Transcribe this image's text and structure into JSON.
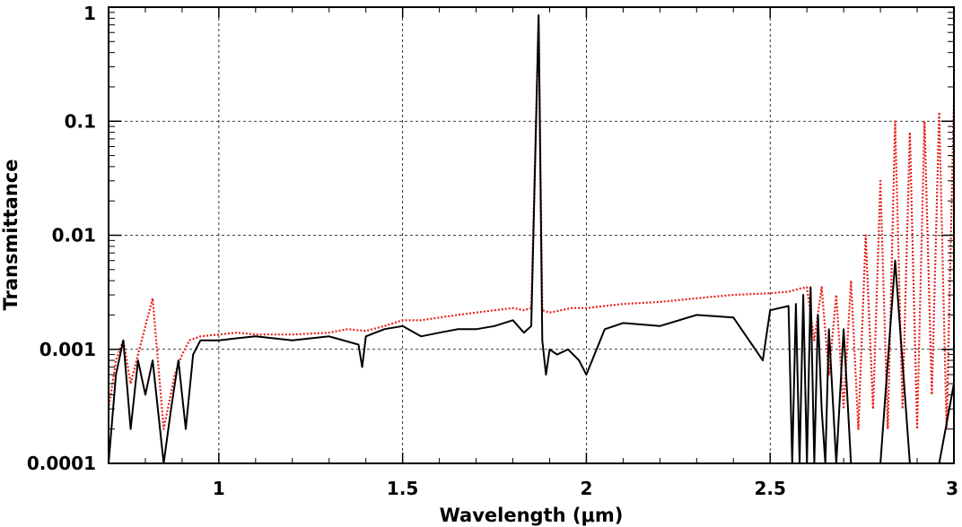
{
  "chart_data": {
    "type": "line",
    "title": "",
    "xlabel": "Wavelength (μm)",
    "ylabel": "Transmittance",
    "xlim": [
      0.7,
      3.0
    ],
    "ylim": [
      0.0001,
      1
    ],
    "yscale": "log",
    "grid": true,
    "legend": "none",
    "x_ticks": [
      1,
      1.5,
      2,
      2.5,
      3
    ],
    "x_tick_labels": [
      "1",
      "1.5",
      "2",
      "2.5",
      "3"
    ],
    "y_ticks": [
      0.0001,
      0.001,
      0.01,
      0.1,
      1
    ],
    "y_tick_labels": [
      "0.0001",
      "0.001",
      "0.01",
      "0.1",
      "1"
    ],
    "series": [
      {
        "style": "dotted",
        "color": "#e8201a",
        "x": [
          0.7,
          0.72,
          0.74,
          0.76,
          0.78,
          0.8,
          0.82,
          0.85,
          0.88,
          0.9,
          0.92,
          0.95,
          1.0,
          1.05,
          1.1,
          1.2,
          1.3,
          1.35,
          1.4,
          1.45,
          1.5,
          1.55,
          1.6,
          1.65,
          1.7,
          1.75,
          1.8,
          1.83,
          1.85,
          1.87,
          1.88,
          1.9,
          1.93,
          1.96,
          2.0,
          2.05,
          2.1,
          2.2,
          2.3,
          2.4,
          2.5,
          2.55,
          2.58,
          2.6,
          2.62,
          2.64,
          2.66,
          2.68,
          2.7,
          2.72,
          2.74,
          2.76,
          2.78,
          2.8,
          2.82,
          2.84,
          2.86,
          2.88,
          2.9,
          2.92,
          2.94,
          2.96,
          2.98,
          3.0
        ],
        "y": [
          0.0003,
          0.0008,
          0.0012,
          0.0005,
          0.0009,
          0.0016,
          0.0028,
          0.0002,
          0.0006,
          0.0009,
          0.0012,
          0.0013,
          0.00135,
          0.0014,
          0.00135,
          0.00135,
          0.0014,
          0.0015,
          0.00145,
          0.0016,
          0.0018,
          0.0018,
          0.0019,
          0.002,
          0.0021,
          0.0022,
          0.0023,
          0.0022,
          0.0023,
          0.8,
          0.0022,
          0.0021,
          0.0022,
          0.0023,
          0.0023,
          0.0024,
          0.0025,
          0.0026,
          0.0028,
          0.003,
          0.0031,
          0.0032,
          0.0034,
          0.0035,
          0.0012,
          0.0035,
          0.0006,
          0.003,
          0.0003,
          0.004,
          0.0002,
          0.01,
          0.0003,
          0.03,
          0.0002,
          0.1,
          0.0003,
          0.08,
          0.0002,
          0.1,
          0.0004,
          0.12,
          0.0002,
          0.15
        ]
      },
      {
        "style": "solid",
        "color": "#000000",
        "x": [
          0.7,
          0.72,
          0.74,
          0.76,
          0.78,
          0.8,
          0.82,
          0.85,
          0.87,
          0.89,
          0.91,
          0.93,
          0.95,
          1.0,
          1.05,
          1.1,
          1.2,
          1.3,
          1.38,
          1.39,
          1.4,
          1.45,
          1.5,
          1.55,
          1.6,
          1.65,
          1.7,
          1.75,
          1.8,
          1.83,
          1.85,
          1.87,
          1.88,
          1.89,
          1.9,
          1.92,
          1.95,
          1.98,
          2.0,
          2.05,
          2.1,
          2.2,
          2.3,
          2.4,
          2.48,
          2.5,
          2.55,
          2.56,
          2.57,
          2.58,
          2.59,
          2.6,
          2.61,
          2.62,
          2.63,
          2.64,
          2.65,
          2.66,
          2.68,
          2.7,
          2.72,
          2.75,
          2.78,
          2.8,
          2.84,
          2.88,
          2.92,
          2.96,
          3.0
        ],
        "y": [
          0.0001,
          0.0006,
          0.0012,
          0.0002,
          0.0008,
          0.0004,
          0.0008,
          0.0001,
          0.0003,
          0.0008,
          0.0002,
          0.0009,
          0.0012,
          0.0012,
          0.00125,
          0.0013,
          0.0012,
          0.0013,
          0.0011,
          0.0007,
          0.0013,
          0.0015,
          0.0016,
          0.0013,
          0.0014,
          0.0015,
          0.0015,
          0.0016,
          0.0018,
          0.0014,
          0.0016,
          0.85,
          0.0012,
          0.0006,
          0.001,
          0.0009,
          0.001,
          0.0008,
          0.0006,
          0.0015,
          0.0017,
          0.0016,
          0.002,
          0.0019,
          0.0008,
          0.0022,
          0.0024,
          0.0001,
          0.0025,
          0.0001,
          0.003,
          0.0001,
          0.0035,
          0.0001,
          0.002,
          0.0003,
          0.0001,
          0.0015,
          0.0001,
          0.0015,
          0.0001,
          0.0001,
          0.0001,
          0.0001,
          0.006,
          0.0001,
          0.0001,
          0.0001,
          0.0005
        ]
      }
    ]
  }
}
